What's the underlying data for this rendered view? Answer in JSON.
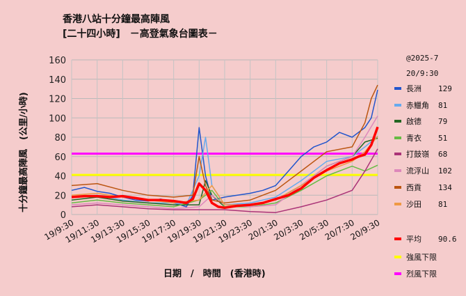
{
  "chart_data": {
    "type": "line",
    "title_line1": "香港八站十分鐘最高陣風",
    "title_line2": "[二十四小時]　－高登氣象台圖表－",
    "timestamp_line1": "@2025-7",
    "timestamp_line2": "20/9:30",
    "xlabel": "日期　/　時間　(香港時)",
    "ylabel": "十分鐘最高陣風　(公里/小時)",
    "ylim": [
      0,
      160
    ],
    "yticks": [
      0,
      20,
      40,
      60,
      80,
      100,
      120,
      140,
      160
    ],
    "grid": true,
    "legend_position": "right",
    "x_tick_labels": [
      "19/9:30",
      "19/11:30",
      "19/13:30",
      "19/15:30",
      "19/17:30",
      "19/19:30",
      "19/21:30",
      "19/23:30",
      "20/1:30",
      "20/3:30",
      "20/5:30",
      "20/7:30",
      "20/9:30"
    ],
    "x_tick_hours": [
      0,
      2,
      4,
      6,
      8,
      10,
      12,
      14,
      16,
      18,
      20,
      22,
      24
    ],
    "thresholds": [
      {
        "name": "強風下限",
        "value": 41,
        "color": "#ffff00"
      },
      {
        "name": "烈風下限",
        "value": 63,
        "color": "#ff00ff"
      }
    ],
    "series": [
      {
        "name": "長洲",
        "latest": "129",
        "color": "#2255cc",
        "x": [
          0,
          1,
          2,
          3,
          4,
          5,
          6,
          7,
          8,
          9,
          9.5,
          10,
          10.5,
          11,
          12,
          13,
          14,
          15,
          16,
          17,
          18,
          19,
          20,
          21,
          22,
          23,
          23.5,
          24
        ],
        "values": [
          25,
          28,
          24,
          22,
          18,
          15,
          14,
          16,
          12,
          8,
          20,
          90,
          40,
          15,
          18,
          20,
          22,
          25,
          30,
          45,
          60,
          70,
          75,
          85,
          80,
          90,
          100,
          129
        ]
      },
      {
        "name": "赤鱲角",
        "latest": "81",
        "color": "#66aaee",
        "x": [
          0,
          2,
          4,
          6,
          8,
          9,
          10,
          10.5,
          11,
          12,
          14,
          16,
          18,
          20,
          22,
          23,
          24
        ],
        "values": [
          18,
          20,
          15,
          12,
          12,
          10,
          40,
          80,
          30,
          10,
          12,
          18,
          35,
          55,
          60,
          70,
          81
        ]
      },
      {
        "name": "啟德",
        "latest": "79",
        "color": "#226622",
        "x": [
          0,
          2,
          4,
          6,
          8,
          10,
          10.5,
          11,
          12,
          14,
          16,
          18,
          20,
          22,
          23,
          24
        ],
        "values": [
          15,
          18,
          14,
          12,
          10,
          10,
          35,
          20,
          8,
          10,
          15,
          30,
          50,
          60,
          75,
          79
        ]
      },
      {
        "name": "青衣",
        "latest": "51",
        "color": "#66bb44",
        "x": [
          0,
          2,
          4,
          6,
          8,
          10,
          11,
          12,
          14,
          16,
          18,
          20,
          22,
          23,
          24
        ],
        "values": [
          12,
          15,
          12,
          10,
          8,
          15,
          25,
          8,
          8,
          12,
          25,
          40,
          50,
          45,
          51
        ]
      },
      {
        "name": "打鼓嶺",
        "latest": "68",
        "color": "#aa3377",
        "x": [
          0,
          2,
          4,
          6,
          8,
          10,
          12,
          14,
          16,
          18,
          20,
          22,
          23,
          24
        ],
        "values": [
          8,
          10,
          8,
          6,
          5,
          5,
          5,
          3,
          2,
          8,
          15,
          25,
          45,
          68
        ]
      },
      {
        "name": "流浮山",
        "latest": "102",
        "color": "#dd88bb",
        "x": [
          0,
          2,
          4,
          6,
          8,
          10,
          11,
          12,
          14,
          16,
          18,
          20,
          22,
          23,
          24
        ],
        "values": [
          10,
          12,
          10,
          8,
          6,
          8,
          20,
          10,
          8,
          10,
          30,
          50,
          60,
          80,
          102
        ]
      },
      {
        "name": "西貢",
        "latest": "134",
        "color": "#bb5511",
        "x": [
          0,
          2,
          4,
          6,
          8,
          9.5,
          10,
          10.5,
          11,
          12,
          14,
          16,
          18,
          20,
          22,
          23,
          23.5,
          24
        ],
        "values": [
          30,
          32,
          25,
          20,
          18,
          20,
          60,
          30,
          15,
          12,
          15,
          25,
          45,
          65,
          70,
          95,
          120,
          134
        ]
      },
      {
        "name": "沙田",
        "latest": "81",
        "color": "#ee9944",
        "x": [
          0,
          2,
          4,
          6,
          8,
          10,
          11,
          12,
          14,
          16,
          18,
          20,
          22,
          23,
          24
        ],
        "values": [
          20,
          22,
          18,
          15,
          12,
          15,
          30,
          10,
          10,
          15,
          30,
          45,
          55,
          65,
          81
        ]
      },
      {
        "name": "平均",
        "latest": "90.6",
        "color": "#ff0000",
        "x": [
          0,
          1,
          2,
          3,
          4,
          5,
          6,
          7,
          8,
          9,
          9.5,
          10,
          10.5,
          11,
          11.5,
          12,
          13,
          14,
          15,
          16,
          17,
          18,
          19,
          20,
          21,
          22,
          22.5,
          23,
          23.5,
          24
        ],
        "values": [
          18,
          19,
          19,
          18,
          19,
          17,
          15,
          15,
          14,
          12,
          16,
          32,
          25,
          12,
          8,
          7,
          9,
          10,
          12,
          16,
          20,
          27,
          38,
          46,
          53,
          57,
          60,
          62,
          72,
          90.6
        ]
      }
    ]
  }
}
